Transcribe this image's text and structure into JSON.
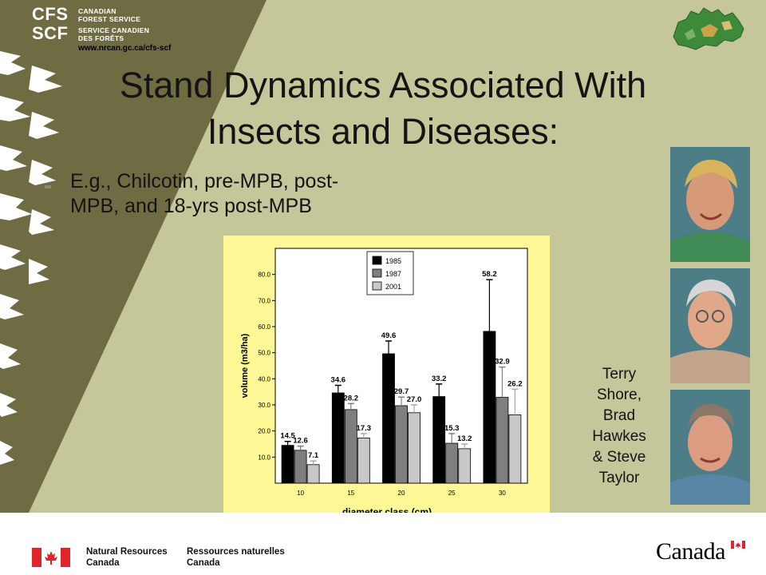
{
  "logo": {
    "abbr_en": "CFS",
    "abbr_fr": "SCF",
    "name_en_line1": "CANADIAN",
    "name_en_line2": "FOREST SERVICE",
    "name_fr_line1": "SERVICE CANADIEN",
    "name_fr_line2": "DES FORÊTS",
    "url": "www.nrcan.gc.ca/cfs-scf"
  },
  "title": {
    "line1": "Stand Dynamics Associated With",
    "line2": "Insects and Diseases:"
  },
  "bullet": {
    "line1": "E.g., Chilcotin, pre-MPB, post-",
    "line2": "MPB, and 18-yrs post-MPB"
  },
  "caption": {
    "line1": "Terry",
    "line2": "Shore,",
    "line3": "Brad",
    "line4": "Hawkes",
    "line5": "& Steve",
    "line6": "Taylor"
  },
  "footer": {
    "dept_en_line1": "Natural Resources",
    "dept_en_line2": "Canada",
    "dept_fr_line1": "Ressources naturelles",
    "dept_fr_line2": "Canada",
    "wordmark": "Canada"
  },
  "colors": {
    "slide_bg": "#c5c69a",
    "dark_band": "#6f6c44",
    "chart_bg": "#fdf795",
    "series_1985": "#000000",
    "series_1987": "#7f7f7f",
    "series_2001": "#c8c8c8",
    "flag_red": "#e0242b"
  },
  "icons": {
    "map": "canada-map-icon",
    "flag": "canada-flag-icon"
  },
  "chart_data": {
    "type": "bar",
    "title": "",
    "xlabel": "diameter class (cm)",
    "ylabel": "volume (m3/ha)",
    "categories": [
      "10",
      "15",
      "20",
      "25",
      "30"
    ],
    "ylim": [
      0,
      90
    ],
    "yticks": [
      "10.0",
      "20.0",
      "30.0",
      "40.0",
      "50.0",
      "60.0",
      "70.0",
      "80.0"
    ],
    "legend_position": "top-center",
    "grid": false,
    "error_bars": true,
    "series": [
      {
        "name": "1985",
        "values": [
          14.5,
          34.6,
          49.6,
          33.2,
          58.2
        ],
        "error_upper": [
          16.0,
          37.5,
          54.5,
          38.0,
          78.0
        ],
        "labels": [
          "14.5",
          "34.6",
          "49.6",
          "33.2",
          "58.2"
        ]
      },
      {
        "name": "1987",
        "values": [
          12.6,
          28.2,
          29.7,
          15.3,
          32.9
        ],
        "error_upper": [
          14.2,
          30.5,
          33.0,
          19.0,
          44.5
        ],
        "labels": [
          "12.6",
          "28.2",
          "29.7",
          "15.3",
          "32.9"
        ]
      },
      {
        "name": "2001",
        "values": [
          7.1,
          17.3,
          27.0,
          13.2,
          26.2
        ],
        "error_upper": [
          8.5,
          19.0,
          30.0,
          15.0,
          36.0
        ],
        "labels": [
          "7.1",
          "17.3",
          "27.0",
          "13.2",
          "26.2"
        ]
      }
    ]
  }
}
